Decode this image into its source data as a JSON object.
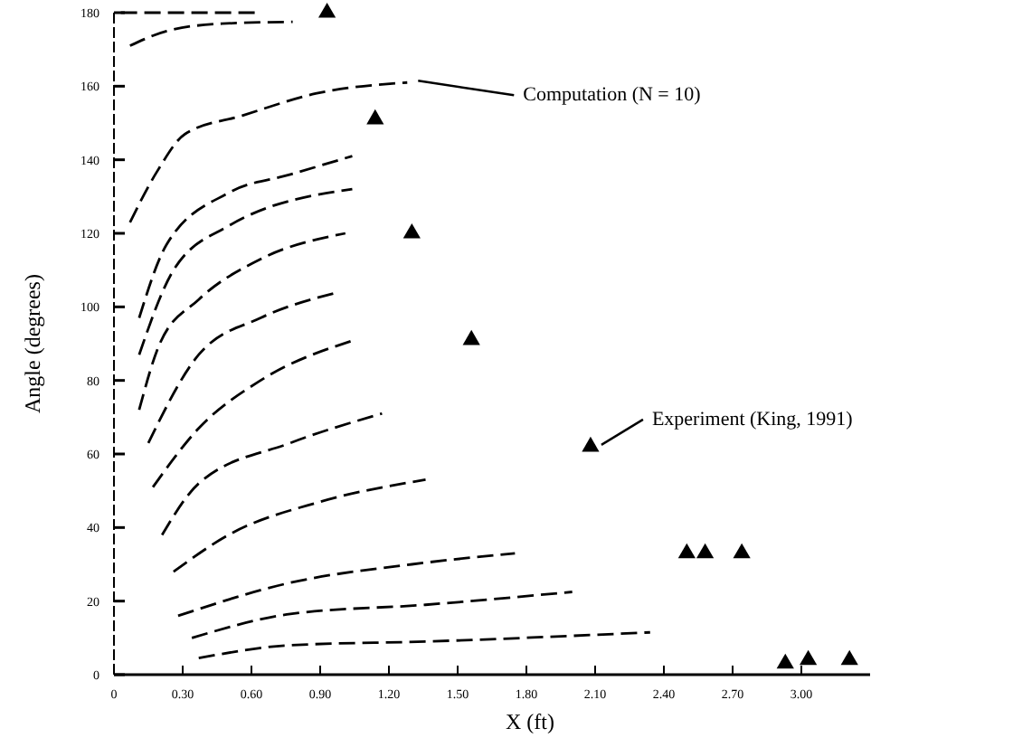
{
  "chart_data": {
    "type": "line",
    "xlabel": "X (ft)",
    "ylabel": "Angle (degrees)",
    "xlim": [
      0,
      3.3
    ],
    "ylim": [
      0,
      180
    ],
    "xticks": [
      0,
      {
        "value": 0.3,
        "label": "0.30"
      },
      {
        "value": 0.6,
        "label": "0.60"
      },
      {
        "value": 0.9,
        "label": "0.90"
      },
      {
        "value": 1.2,
        "label": "1.20"
      },
      {
        "value": 1.5,
        "label": "1.50"
      },
      {
        "value": 1.8,
        "label": "1.80"
      },
      {
        "value": 2.1,
        "label": "2.10"
      },
      {
        "value": 2.4,
        "label": "2.40"
      },
      {
        "value": 2.7,
        "label": "2.70"
      },
      {
        "value": 3,
        "label": "3.00"
      }
    ],
    "yticks": [
      0,
      20,
      40,
      60,
      80,
      100,
      120,
      140,
      160,
      180
    ],
    "grid": false,
    "line_style": "dashed",
    "series": [
      {
        "color": "#000000",
        "x": [
          0.03,
          0.33,
          0.63
        ],
        "values": [
          180,
          180,
          180
        ]
      },
      {
        "color": "#000000",
        "x": [
          0.07,
          0.23,
          0.47,
          0.78
        ],
        "values": [
          171,
          175,
          177,
          177.5
        ]
      },
      {
        "color": "#000000",
        "x": [
          0.07,
          0.19,
          0.31,
          0.56,
          0.88,
          1.28
        ],
        "values": [
          123,
          137,
          147,
          152,
          158,
          161
        ]
      },
      {
        "color": "#000000",
        "x": [
          0.11,
          0.23,
          0.5,
          0.77,
          1.04
        ],
        "values": [
          97,
          117,
          131,
          136,
          141
        ]
      },
      {
        "color": "#000000",
        "x": [
          0.11,
          0.26,
          0.5,
          1.04
        ],
        "values": [
          87,
          110,
          122,
          132
        ]
      },
      {
        "color": "#000000",
        "x": [
          0.11,
          0.2,
          0.37,
          0.64,
          1.01
        ],
        "values": [
          72,
          90,
          102,
          113,
          120
        ]
      },
      {
        "color": "#000000",
        "x": [
          0.15,
          0.37,
          0.64,
          0.98
        ],
        "values": [
          63,
          87,
          97,
          104
        ]
      },
      {
        "color": "#000000",
        "x": [
          0.17,
          0.37,
          0.64,
          1.05
        ],
        "values": [
          51,
          67,
          80,
          91
        ]
      },
      {
        "color": "#000000",
        "x": [
          0.21,
          0.37,
          0.77,
          1.17
        ],
        "values": [
          38,
          52,
          63,
          71
        ]
      },
      {
        "color": "#000000",
        "x": [
          0.26,
          0.5,
          0.9,
          1.36
        ],
        "values": [
          28,
          38,
          47,
          53
        ]
      },
      {
        "color": "#000000",
        "x": [
          0.28,
          0.77,
          1.3,
          1.75
        ],
        "values": [
          16,
          25,
          30,
          33
        ]
      },
      {
        "color": "#000000",
        "x": [
          0.34,
          0.77,
          1.36,
          2.0
        ],
        "values": [
          10,
          16.5,
          19,
          22.5
        ]
      },
      {
        "color": "#000000",
        "x": [
          0.37,
          0.77,
          1.36,
          2.34
        ],
        "values": [
          4.5,
          8,
          9,
          11.5
        ]
      },
      {
        "type": "scatter",
        "marker": "triangle",
        "color": "#000000",
        "x": [
          0.93,
          1.14,
          1.3,
          1.56,
          2.08,
          2.5,
          2.58,
          2.74,
          2.93,
          3.03,
          3.21
        ],
        "values": [
          180,
          151,
          120,
          91,
          62,
          33,
          33,
          33,
          3,
          4,
          4
        ]
      }
    ],
    "annotations": [
      {
        "text": "Computation (N = 10)",
        "x": 1.28,
        "y": 161
      },
      {
        "text": "Experiment (King, 1991)",
        "x": 2.08,
        "y": 62
      }
    ]
  }
}
